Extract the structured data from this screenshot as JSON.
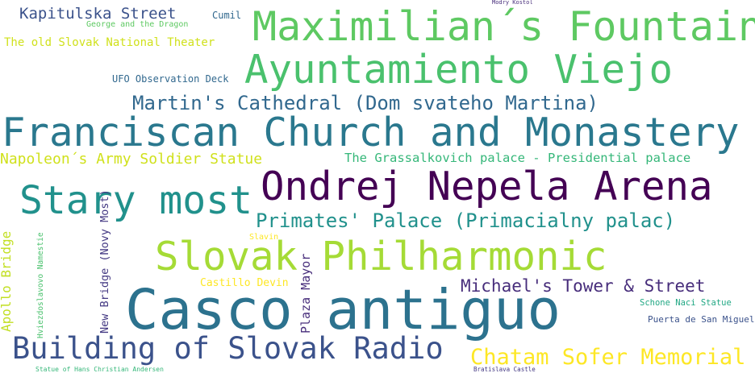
{
  "words": {
    "kapitulska": {
      "text": "Kapitulska Street",
      "color": "#3b528b"
    },
    "cumil": {
      "text": "Cumil",
      "color": "#31688e"
    },
    "george": {
      "text": "George and the Dragon",
      "color": "#5ec962"
    },
    "modry": {
      "text": "Modry Kostol",
      "color": "#472d7b"
    },
    "maximilian": {
      "text": "Maximilian´s Fountain",
      "color": "#5ec962"
    },
    "old_theater": {
      "text": "The old Slovak National Theater",
      "color": "#d0e11c"
    },
    "ayuntamiento": {
      "text": "Ayuntamiento Viejo",
      "color": "#4ac16d"
    },
    "ufo": {
      "text": "UFO Observation Deck",
      "color": "#31688e"
    },
    "martins": {
      "text": "Martin's Cathedral (Dom svateho Martina)",
      "color": "#31688e"
    },
    "franciscan": {
      "text": "Franciscan Church and Monastery",
      "color": "#2a788e"
    },
    "napoleon": {
      "text": "Napoleon´s Army Soldier Statue",
      "color": "#d0e11c"
    },
    "grassalkovich": {
      "text": "The Grassalkovich palace - Presidential palace",
      "color": "#35b779"
    },
    "stary": {
      "text": "Stary most",
      "color": "#21918c"
    },
    "ondrej": {
      "text": "Ondrej Nepela Arena",
      "color": "#440154"
    },
    "primates": {
      "text": "Primates' Palace (Primacialny palac)",
      "color": "#21918c"
    },
    "apollo": {
      "text": "Apollo Bridge",
      "color": "#c2df23"
    },
    "hviezdoslavovo": {
      "text": "Hviezdoslavovo Namestie",
      "color": "#4ac16d"
    },
    "new_bridge": {
      "text": "New Bridge (Novy Most)",
      "color": "#443983"
    },
    "slavin": {
      "text": "Slavin",
      "color": "#fde725"
    },
    "slovak_phil": {
      "text": "Slovak Philharmonic",
      "color": "#a5db36"
    },
    "castillo": {
      "text": "Castillo Devin",
      "color": "#fde725"
    },
    "plaza": {
      "text": "Plaza Mayor",
      "color": "#472d7b"
    },
    "michaels": {
      "text": "Michael's Tower & Street",
      "color": "#472d7b"
    },
    "casco": {
      "text": "Casco antiguo",
      "color": "#2c728e"
    },
    "schone": {
      "text": "Schone Naci Statue",
      "color": "#22a884"
    },
    "puerta": {
      "text": "Puerta de San Miguel",
      "color": "#3b528b"
    },
    "building": {
      "text": "Building of Slovak Radio",
      "color": "#3b528b"
    },
    "chatam": {
      "text": "Chatam Sofer Memorial",
      "color": "#fde725"
    },
    "andersen": {
      "text": "Statue of Hans Christian Andersen",
      "color": "#35b779"
    },
    "bratislava": {
      "text": "Bratislava Castle",
      "color": "#443983"
    }
  }
}
